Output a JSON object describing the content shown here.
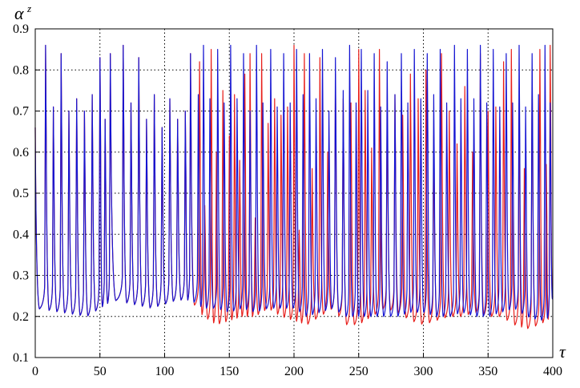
{
  "chart_data": {
    "type": "line",
    "xlabel": "τ",
    "ylabel": "α",
    "ylabel_superscript": "z",
    "xlim": [
      0,
      400
    ],
    "ylim": [
      0.1,
      0.9
    ],
    "xticks": [
      0,
      50,
      100,
      150,
      200,
      250,
      300,
      350,
      400
    ],
    "yticks": [
      0.1,
      0.2,
      0.3,
      0.4,
      0.5,
      0.6,
      0.7,
      0.8,
      0.9
    ],
    "grid": true,
    "grid_style": "dotted",
    "series": [
      {
        "color": "#e8201c",
        "baseline": [
          [
            0,
            0.22
          ],
          [
            40,
            0.2
          ],
          [
            60,
            0.24
          ],
          [
            90,
            0.22
          ],
          [
            110,
            0.24
          ],
          [
            120,
            0.24
          ],
          [
            130,
            0.2
          ],
          [
            140,
            0.18
          ],
          [
            150,
            0.19
          ],
          [
            160,
            0.2
          ],
          [
            170,
            0.2
          ],
          [
            180,
            0.22
          ],
          [
            190,
            0.2
          ],
          [
            200,
            0.19
          ],
          [
            210,
            0.18
          ],
          [
            220,
            0.2
          ],
          [
            230,
            0.22
          ],
          [
            240,
            0.18
          ],
          [
            250,
            0.18
          ],
          [
            260,
            0.2
          ],
          [
            270,
            0.22
          ],
          [
            280,
            0.21
          ],
          [
            290,
            0.19
          ],
          [
            300,
            0.18
          ],
          [
            310,
            0.19
          ],
          [
            320,
            0.2
          ],
          [
            330,
            0.2
          ],
          [
            340,
            0.21
          ],
          [
            350,
            0.2
          ],
          [
            360,
            0.2
          ],
          [
            370,
            0.18
          ],
          [
            380,
            0.17
          ],
          [
            390,
            0.18
          ],
          [
            400,
            0.2
          ]
        ],
        "peaks": [
          [
            8,
            0.86
          ],
          [
            14,
            0.71
          ],
          [
            20,
            0.84
          ],
          [
            26,
            0.7
          ],
          [
            32,
            0.73
          ],
          [
            38,
            0.7
          ],
          [
            44,
            0.74
          ],
          [
            50,
            0.83
          ],
          [
            54,
            0.68
          ],
          [
            58,
            0.84
          ],
          [
            68,
            0.86
          ],
          [
            74,
            0.72
          ],
          [
            80,
            0.83
          ],
          [
            86,
            0.68
          ],
          [
            92,
            0.74
          ],
          [
            98,
            0.66
          ],
          [
            104,
            0.73
          ],
          [
            110,
            0.68
          ],
          [
            116,
            0.7
          ],
          [
            120,
            0.84
          ],
          [
            127,
            0.82
          ],
          [
            131,
            0.47
          ],
          [
            136,
            0.85
          ],
          [
            140,
            0.6
          ],
          [
            145,
            0.75
          ],
          [
            150,
            0.64
          ],
          [
            154,
            0.74
          ],
          [
            158,
            0.58
          ],
          [
            162,
            0.79
          ],
          [
            166,
            0.84
          ],
          [
            170,
            0.44
          ],
          [
            175,
            0.84
          ],
          [
            180,
            0.67
          ],
          [
            185,
            0.73
          ],
          [
            190,
            0.69
          ],
          [
            195,
            0.71
          ],
          [
            200,
            0.86
          ],
          [
            204,
            0.41
          ],
          [
            208,
            0.84
          ],
          [
            214,
            0.56
          ],
          [
            220,
            0.83
          ],
          [
            226,
            0.6
          ],
          [
            232,
            0.79
          ],
          [
            238,
            0.73
          ],
          [
            244,
            0.72
          ],
          [
            250,
            0.85
          ],
          [
            255,
            0.75
          ],
          [
            260,
            0.61
          ],
          [
            266,
            0.85
          ],
          [
            272,
            0.72
          ],
          [
            278,
            0.74
          ],
          [
            284,
            0.69
          ],
          [
            290,
            0.79
          ],
          [
            296,
            0.73
          ],
          [
            302,
            0.8
          ],
          [
            308,
            0.64
          ],
          [
            314,
            0.84
          ],
          [
            320,
            0.7
          ],
          [
            326,
            0.62
          ],
          [
            332,
            0.76
          ],
          [
            338,
            0.6
          ],
          [
            344,
            0.84
          ],
          [
            350,
            0.7
          ],
          [
            356,
            0.71
          ],
          [
            362,
            0.82
          ],
          [
            368,
            0.85
          ],
          [
            374,
            0.72
          ],
          [
            378,
            0.56
          ],
          [
            384,
            0.8
          ],
          [
            390,
            0.85
          ],
          [
            395,
            0.57
          ],
          [
            398,
            0.86
          ]
        ]
      },
      {
        "color": "#1414d2",
        "baseline": [
          [
            0,
            0.22
          ],
          [
            40,
            0.2
          ],
          [
            60,
            0.24
          ],
          [
            90,
            0.22
          ],
          [
            110,
            0.24
          ],
          [
            120,
            0.24
          ],
          [
            130,
            0.22
          ],
          [
            140,
            0.22
          ],
          [
            150,
            0.21
          ],
          [
            160,
            0.22
          ],
          [
            170,
            0.21
          ],
          [
            180,
            0.22
          ],
          [
            190,
            0.22
          ],
          [
            200,
            0.22
          ],
          [
            210,
            0.2
          ],
          [
            220,
            0.21
          ],
          [
            230,
            0.22
          ],
          [
            240,
            0.2
          ],
          [
            250,
            0.2
          ],
          [
            260,
            0.2
          ],
          [
            270,
            0.2
          ],
          [
            280,
            0.2
          ],
          [
            290,
            0.21
          ],
          [
            300,
            0.21
          ],
          [
            310,
            0.2
          ],
          [
            320,
            0.2
          ],
          [
            330,
            0.21
          ],
          [
            340,
            0.2
          ],
          [
            350,
            0.2
          ],
          [
            360,
            0.21
          ],
          [
            370,
            0.22
          ],
          [
            380,
            0.2
          ],
          [
            390,
            0.19
          ],
          [
            400,
            0.2
          ]
        ],
        "peaks": [
          [
            8,
            0.86
          ],
          [
            14,
            0.71
          ],
          [
            20,
            0.84
          ],
          [
            26,
            0.7
          ],
          [
            32,
            0.73
          ],
          [
            38,
            0.7
          ],
          [
            44,
            0.74
          ],
          [
            50,
            0.83
          ],
          [
            54,
            0.68
          ],
          [
            58,
            0.84
          ],
          [
            68,
            0.86
          ],
          [
            74,
            0.72
          ],
          [
            80,
            0.83
          ],
          [
            86,
            0.68
          ],
          [
            92,
            0.74
          ],
          [
            98,
            0.66
          ],
          [
            104,
            0.73
          ],
          [
            110,
            0.68
          ],
          [
            116,
            0.7
          ],
          [
            120,
            0.84
          ],
          [
            126,
            0.74
          ],
          [
            130,
            0.86
          ],
          [
            135,
            0.73
          ],
          [
            141,
            0.85
          ],
          [
            146,
            0.72
          ],
          [
            151,
            0.86
          ],
          [
            156,
            0.73
          ],
          [
            161,
            0.84
          ],
          [
            166,
            0.7
          ],
          [
            171,
            0.86
          ],
          [
            176,
            0.72
          ],
          [
            182,
            0.85
          ],
          [
            187,
            0.71
          ],
          [
            192,
            0.84
          ],
          [
            197,
            0.72
          ],
          [
            202,
            0.85
          ],
          [
            207,
            0.74
          ],
          [
            212,
            0.84
          ],
          [
            217,
            0.73
          ],
          [
            222,
            0.85
          ],
          [
            227,
            0.7
          ],
          [
            232,
            0.83
          ],
          [
            238,
            0.75
          ],
          [
            243,
            0.86
          ],
          [
            248,
            0.72
          ],
          [
            252,
            0.85
          ],
          [
            257,
            0.75
          ],
          [
            262,
            0.84
          ],
          [
            267,
            0.71
          ],
          [
            272,
            0.82
          ],
          [
            278,
            0.74
          ],
          [
            283,
            0.84
          ],
          [
            288,
            0.72
          ],
          [
            293,
            0.85
          ],
          [
            298,
            0.73
          ],
          [
            303,
            0.84
          ],
          [
            308,
            0.74
          ],
          [
            313,
            0.85
          ],
          [
            318,
            0.72
          ],
          [
            324,
            0.86
          ],
          [
            329,
            0.73
          ],
          [
            334,
            0.85
          ],
          [
            339,
            0.73
          ],
          [
            344,
            0.86
          ],
          [
            349,
            0.72
          ],
          [
            354,
            0.85
          ],
          [
            359,
            0.71
          ],
          [
            364,
            0.84
          ],
          [
            369,
            0.72
          ],
          [
            374,
            0.86
          ],
          [
            379,
            0.71
          ],
          [
            384,
            0.84
          ],
          [
            389,
            0.74
          ],
          [
            394,
            0.86
          ],
          [
            398,
            0.72
          ]
        ]
      }
    ]
  }
}
